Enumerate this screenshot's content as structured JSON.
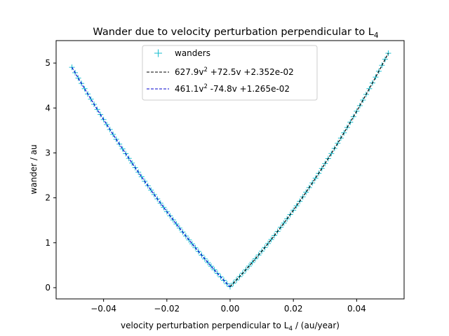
{
  "chart_data": {
    "type": "scatter",
    "title": "Wander due to velocity perturbation perpendicular to L",
    "title_subscript": "4",
    "xlabel": "velocity perturbation perpendicular to L",
    "xlabel_subscript": "4",
    "xlabel_suffix": " / (au/year)",
    "ylabel": "wander / au",
    "xlim": [
      -0.055,
      0.055
    ],
    "ylim": [
      -0.25,
      5.5
    ],
    "x_ticks": [
      -0.04,
      -0.02,
      0.0,
      0.02,
      0.04
    ],
    "x_tick_labels": [
      "−0.04",
      "−0.02",
      "0.00",
      "0.02",
      "0.04"
    ],
    "y_ticks": [
      0,
      1,
      2,
      3,
      4,
      5
    ],
    "y_tick_labels": [
      "0",
      "1",
      "2",
      "3",
      "4",
      "5"
    ],
    "grid": false,
    "legend_position": "top-center",
    "series": [
      {
        "name": "wanders",
        "kind": "points",
        "marker": "plus",
        "color": "#17becf",
        "x_range": [
          -0.05,
          0.05
        ],
        "point_count": 101,
        "points_generated_from": "fits"
      },
      {
        "name_parts": [
          "627.9v",
          "2",
          " +72.5v +2.352e-02"
        ],
        "kind": "fit",
        "style": "dashed",
        "color": "#000000",
        "x_range": [
          0.0,
          0.05
        ],
        "coefficients": {
          "a": 627.9,
          "b": 72.5,
          "c": 0.02352
        }
      },
      {
        "name_parts": [
          "461.1v",
          "2",
          " -74.8v +1.265e-02"
        ],
        "kind": "fit",
        "style": "dashed",
        "color": "#0000cc",
        "x_range": [
          -0.05,
          0.0
        ],
        "coefficients": {
          "a": 461.1,
          "b": -74.8,
          "c": 0.01265
        }
      }
    ]
  }
}
